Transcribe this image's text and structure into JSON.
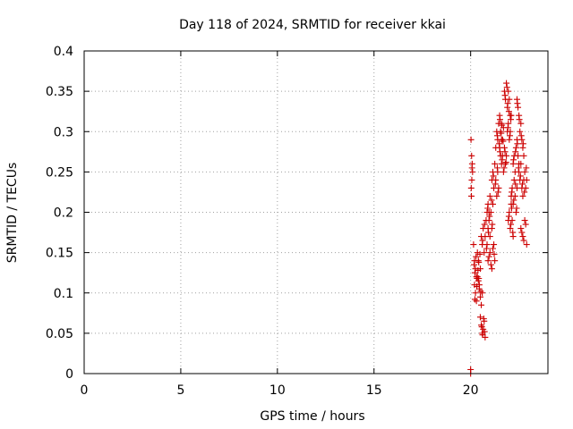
{
  "chart_data": {
    "type": "scatter",
    "title": "Day 118 of 2024, SRMTID for receiver kkai",
    "xlabel": "GPS time / hours",
    "ylabel": "SRMTID / TECUs",
    "xlim": [
      0,
      24
    ],
    "ylim": [
      0,
      0.4
    ],
    "x_ticks": [
      0,
      5,
      10,
      15,
      20
    ],
    "x_tick_labels": [
      "0",
      "5",
      "10",
      "15",
      "20"
    ],
    "y_ticks": [
      0,
      0.05,
      0.1,
      0.15,
      0.2,
      0.25,
      0.3,
      0.35,
      0.4
    ],
    "y_tick_labels": [
      "0",
      "0.05",
      "0.1",
      "0.15",
      "0.2",
      "0.25",
      "0.3",
      "0.35",
      "0.4"
    ],
    "grid": true,
    "marker": "plus",
    "marker_color": "#cc0000",
    "series": [
      {
        "x": [
          20.0,
          20.0,
          20.02,
          20.05,
          20.08,
          20.03,
          20.06,
          20.1,
          20.04,
          20.07,
          20.15,
          20.2,
          20.25,
          20.3,
          20.35,
          20.4,
          20.45,
          20.5,
          20.18,
          20.22,
          20.28,
          20.33,
          20.38,
          20.42,
          20.48,
          20.2,
          20.25,
          20.3,
          20.35,
          20.4,
          20.45,
          20.5,
          20.55,
          20.6,
          20.22,
          20.32,
          20.42,
          20.52,
          20.5,
          20.55,
          20.6,
          20.65,
          20.7,
          20.75,
          20.58,
          20.62,
          20.68,
          20.72,
          20.55,
          20.6,
          20.65,
          20.7,
          20.75,
          20.8,
          20.85,
          20.9,
          20.95,
          21.0,
          20.62,
          20.72,
          20.82,
          20.92,
          20.85,
          20.9,
          20.95,
          21.0,
          21.05,
          21.1,
          21.15,
          20.88,
          20.98,
          21.08,
          21.12,
          20.9,
          21.0,
          21.1,
          21.2,
          21.25,
          20.95,
          21.05,
          21.15,
          21.22,
          21.1,
          21.15,
          21.2,
          21.25,
          21.3,
          21.35,
          21.4,
          21.45,
          21.18,
          21.28,
          21.38,
          21.42,
          21.3,
          21.35,
          21.4,
          21.45,
          21.5,
          21.55,
          21.6,
          21.38,
          21.48,
          21.52,
          21.5,
          21.55,
          21.6,
          21.65,
          21.7,
          21.52,
          21.58,
          21.62,
          21.68,
          21.6,
          21.65,
          21.7,
          21.75,
          21.8,
          21.85,
          21.63,
          21.73,
          21.78,
          21.83,
          21.75,
          21.8,
          21.85,
          21.9,
          21.95,
          22.0,
          22.05,
          21.78,
          21.88,
          21.92,
          21.98,
          21.9,
          21.95,
          22.0,
          22.05,
          22.1,
          21.93,
          22.03,
          22.08,
          21.95,
          22.0,
          22.05,
          22.1,
          22.15,
          22.2,
          21.98,
          22.08,
          22.12,
          22.18,
          22.1,
          22.15,
          22.2,
          22.25,
          22.3,
          22.35,
          22.4,
          22.13,
          22.23,
          22.32,
          22.38,
          22.2,
          22.25,
          22.3,
          22.35,
          22.4,
          22.45,
          22.5,
          22.22,
          22.32,
          22.42,
          22.48,
          22.4,
          22.45,
          22.5,
          22.55,
          22.6,
          22.65,
          22.7,
          22.75,
          22.42,
          22.52,
          22.62,
          22.72,
          22.5,
          22.55,
          22.6,
          22.65,
          22.7,
          22.75,
          22.8,
          22.85,
          22.9,
          22.58,
          22.68,
          22.78,
          22.88,
          22.6,
          22.7,
          22.8,
          22.9,
          22.65,
          22.75,
          22.85
        ],
        "y": [
          0.0,
          0.005,
          0.29,
          0.27,
          0.26,
          0.23,
          0.24,
          0.25,
          0.22,
          0.255,
          0.16,
          0.14,
          0.13,
          0.12,
          0.15,
          0.14,
          0.11,
          0.13,
          0.135,
          0.125,
          0.145,
          0.118,
          0.128,
          0.138,
          0.148,
          0.11,
          0.1,
          0.09,
          0.12,
          0.115,
          0.105,
          0.095,
          0.085,
          0.1,
          0.092,
          0.108,
          0.118,
          0.102,
          0.07,
          0.06,
          0.05,
          0.055,
          0.065,
          0.045,
          0.058,
          0.048,
          0.068,
          0.052,
          0.17,
          0.16,
          0.18,
          0.15,
          0.17,
          0.19,
          0.16,
          0.18,
          0.2,
          0.17,
          0.165,
          0.185,
          0.155,
          0.175,
          0.2,
          0.21,
          0.19,
          0.22,
          0.2,
          0.18,
          0.21,
          0.205,
          0.195,
          0.215,
          0.185,
          0.14,
          0.15,
          0.13,
          0.16,
          0.14,
          0.145,
          0.135,
          0.155,
          0.148,
          0.24,
          0.25,
          0.23,
          0.26,
          0.24,
          0.22,
          0.25,
          0.23,
          0.245,
          0.235,
          0.255,
          0.225,
          0.28,
          0.3,
          0.29,
          0.31,
          0.28,
          0.27,
          0.29,
          0.295,
          0.285,
          0.275,
          0.32,
          0.3,
          0.31,
          0.29,
          0.305,
          0.315,
          0.298,
          0.308,
          0.288,
          0.26,
          0.27,
          0.25,
          0.28,
          0.26,
          0.27,
          0.265,
          0.255,
          0.275,
          0.262,
          0.35,
          0.34,
          0.36,
          0.33,
          0.35,
          0.34,
          0.32,
          0.345,
          0.355,
          0.335,
          0.325,
          0.3,
          0.31,
          0.29,
          0.3,
          0.32,
          0.305,
          0.295,
          0.315,
          0.19,
          0.2,
          0.18,
          0.21,
          0.19,
          0.17,
          0.195,
          0.185,
          0.205,
          0.175,
          0.22,
          0.23,
          0.21,
          0.24,
          0.22,
          0.2,
          0.23,
          0.225,
          0.215,
          0.235,
          0.205,
          0.26,
          0.27,
          0.25,
          0.28,
          0.29,
          0.27,
          0.26,
          0.265,
          0.275,
          0.285,
          0.255,
          0.34,
          0.33,
          0.32,
          0.3,
          0.31,
          0.29,
          0.28,
          0.27,
          0.335,
          0.315,
          0.295,
          0.285,
          0.25,
          0.24,
          0.26,
          0.23,
          0.22,
          0.24,
          0.25,
          0.23,
          0.24,
          0.245,
          0.235,
          0.225,
          0.255,
          0.18,
          0.17,
          0.19,
          0.16,
          0.175,
          0.165,
          0.185
        ]
      }
    ]
  }
}
